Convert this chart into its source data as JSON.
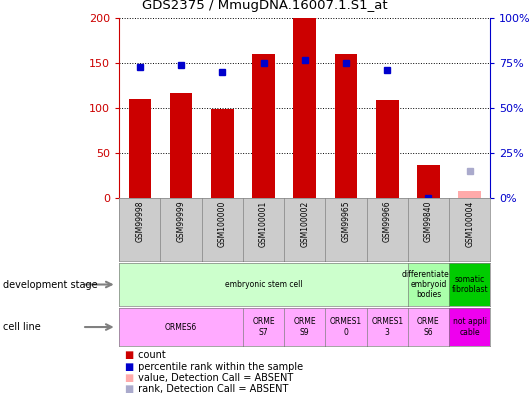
{
  "title": "GDS2375 / MmugDNA.16007.1.S1_at",
  "samples": [
    "GSM99998",
    "GSM99999",
    "GSM100000",
    "GSM100001",
    "GSM100002",
    "GSM99965",
    "GSM99966",
    "GSM99840",
    "GSM100004"
  ],
  "count_values": [
    110,
    117,
    99,
    160,
    200,
    160,
    109,
    37,
    8
  ],
  "count_absent": [
    false,
    false,
    false,
    false,
    false,
    false,
    false,
    false,
    true
  ],
  "percentile_values": [
    73,
    74,
    70,
    75,
    77,
    75,
    71,
    0,
    15
  ],
  "percentile_absent": [
    false,
    false,
    false,
    false,
    false,
    false,
    false,
    false,
    true
  ],
  "ylim": [
    0,
    200
  ],
  "y2lim": [
    0,
    100
  ],
  "yticks": [
    0,
    50,
    100,
    150,
    200
  ],
  "y2ticks": [
    0,
    25,
    50,
    75,
    100
  ],
  "y2tick_labels": [
    "0%",
    "25%",
    "50%",
    "75%",
    "100%"
  ],
  "dev_stage_final": [
    {
      "label": "embryonic stem cell",
      "start": 0,
      "end": 8,
      "color": "#ccffcc"
    },
    {
      "label": "differentiated\nembryoid\nbodies",
      "start": 8,
      "end": 9,
      "color": "#aaffaa"
    },
    {
      "label": "somatic\nfibroblast",
      "start": 8,
      "end": 9,
      "color": "#00cc00"
    }
  ],
  "cell_line_final": [
    {
      "label": "ORMES6",
      "start": 0,
      "end": 3,
      "color": "#ffaaff"
    },
    {
      "label": "ORME\nS7",
      "start": 3,
      "end": 4,
      "color": "#ffaaff"
    },
    {
      "label": "ORME\nS9",
      "start": 4,
      "end": 5,
      "color": "#ffaaff"
    },
    {
      "label": "ORMES1\n0",
      "start": 5,
      "end": 6,
      "color": "#ffaaff"
    },
    {
      "label": "ORMES1\n3",
      "start": 6,
      "end": 7,
      "color": "#ffaaff"
    },
    {
      "label": "ORME\nS6",
      "start": 7,
      "end": 8,
      "color": "#ffaaff"
    },
    {
      "label": "not appli\ncable",
      "start": 8,
      "end": 9,
      "color": "#ee00ee"
    }
  ],
  "bar_color": "#cc0000",
  "bar_absent_color": "#ffaaaa",
  "dot_color": "#0000cc",
  "dot_absent_color": "#aaaacc",
  "background_color": "#ffffff",
  "axis_color_left": "#cc0000",
  "axis_color_right": "#0000cc",
  "sample_box_color": "#cccccc",
  "grid_color": "#000000"
}
